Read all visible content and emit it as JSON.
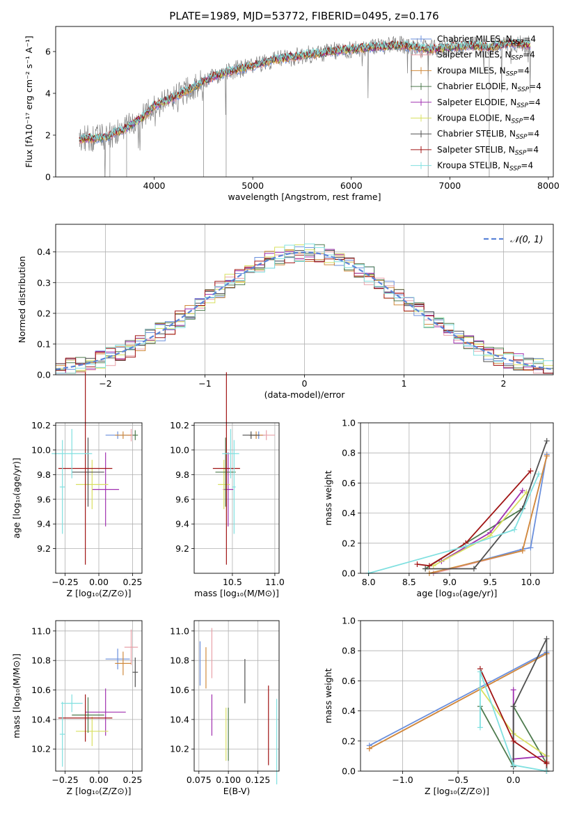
{
  "figure_title": "PLATE=1989, MJD=53772, FIBERID=0495, z=0.176",
  "model_colors": [
    "#6a8fdc",
    "#e8a0a8",
    "#d08a3c",
    "#4d7a4d",
    "#a030b0",
    "#d8e060",
    "#505050",
    "#a01414",
    "#80e0e0"
  ],
  "chart_data": [
    {
      "id": "spectrum",
      "type": "line",
      "title": "PLATE=1989, MJD=53772, FIBERID=0495, z=0.176",
      "xlabel": "wavelength [Angstrom, rest frame]",
      "ylabel": "Flux [fλ10⁻¹⁷ erg cm⁻² s⁻¹ A⁻¹]",
      "xlim": [
        3000,
        8050
      ],
      "ylim": [
        0,
        7.2
      ],
      "xticks": [
        4000,
        5000,
        6000,
        7000,
        8000
      ],
      "yticks": [
        0,
        2,
        4,
        6
      ],
      "grid": false,
      "legend_position": "top-right",
      "legend": [
        "Chabrier MILES, N_SSP=4",
        "Salpeter MILES, N_SSP=4",
        "Kroupa MILES, N_SSP=4",
        "Chabrier ELODIE, N_SSP=4",
        "Salpeter ELODIE, N_SSP=4",
        "Kroupa ELODIE, N_SSP=4",
        "Chabrier STELIB, N_SSP=4",
        "Salpeter STELIB, N_SSP=4",
        "Kroupa STELIB, N_SSP=4"
      ],
      "data_range_x": [
        3240,
        7820
      ],
      "model_envelope": [
        [
          3240,
          1.8
        ],
        [
          3500,
          1.9
        ],
        [
          3700,
          2.3
        ],
        [
          3900,
          2.9
        ],
        [
          4000,
          3.4
        ],
        [
          4200,
          3.8
        ],
        [
          4400,
          4.3
        ],
        [
          4600,
          4.8
        ],
        [
          4800,
          5.1
        ],
        [
          5000,
          5.3
        ],
        [
          5200,
          5.6
        ],
        [
          5500,
          5.8
        ],
        [
          5800,
          6.0
        ],
        [
          6000,
          6.1
        ],
        [
          6200,
          6.2
        ],
        [
          6500,
          6.3
        ],
        [
          6800,
          6.1
        ],
        [
          7000,
          6.2
        ],
        [
          7200,
          6.3
        ],
        [
          7400,
          6.2
        ],
        [
          7600,
          6.4
        ],
        [
          7820,
          6.3
        ]
      ]
    },
    {
      "id": "residuals",
      "type": "histogram",
      "xlabel": "(data-model)/error",
      "ylabel": "Normed distribution",
      "xlim": [
        -2.5,
        2.5
      ],
      "ylim": [
        0,
        0.49
      ],
      "xticks": [
        -2,
        -1,
        0,
        1,
        2
      ],
      "yticks": [
        0.0,
        0.1,
        0.2,
        0.3,
        0.4
      ],
      "grid": true,
      "legend_position": "top-right",
      "legend": [
        "𝒩(0, 1)"
      ],
      "bin_width": 0.1
    },
    {
      "id": "age-vs-Z",
      "type": "scatter",
      "xlabel": "Z [log₁₀(Z/Z⊙)]",
      "ylabel": "age  [log₁₀(age/yr)]",
      "xlim": [
        -0.32,
        0.32
      ],
      "ylim": [
        9.0,
        10.22
      ],
      "xticks": [
        -0.25,
        0.0,
        0.25
      ],
      "yticks": [
        9.2,
        9.4,
        9.6,
        9.8,
        10.0,
        10.2
      ],
      "grid": true,
      "points": [
        {
          "x": 0.14,
          "y": 10.12,
          "xerr": 0.09,
          "yerr": 0.03,
          "color": 0
        },
        {
          "x": 0.24,
          "y": 10.12,
          "xerr": 0.03,
          "yerr": 0.05,
          "color": 1
        },
        {
          "x": 0.18,
          "y": 10.12,
          "xerr": 0.06,
          "yerr": 0.03,
          "color": 2
        },
        {
          "x": 0.27,
          "y": 10.12,
          "xerr": 0.02,
          "yerr": 0.04,
          "color": 3
        },
        {
          "x": 0.05,
          "y": 9.68,
          "xerr": 0.1,
          "yerr": 0.3,
          "color": 4
        },
        {
          "x": -0.05,
          "y": 9.72,
          "xerr": 0.12,
          "yerr": 0.2,
          "color": 5
        },
        {
          "x": -0.08,
          "y": 9.82,
          "xerr": 0.12,
          "yerr": 0.28,
          "color": 6
        },
        {
          "x": -0.1,
          "y": 9.85,
          "xerr": 0.2,
          "yerr": 0.78,
          "color": 7
        },
        {
          "x": -0.2,
          "y": 9.97,
          "xerr": 0.15,
          "yerr": 0.2,
          "color": 8
        },
        {
          "x": -0.27,
          "y": 9.7,
          "xerr": 0.02,
          "yerr": 0.38,
          "color": 8
        }
      ]
    },
    {
      "id": "age-vs-mass",
      "type": "scatter",
      "xlabel": "mass [log₁₀(M/M⊙)]",
      "ylabel": "",
      "xlim": [
        10.05,
        11.05
      ],
      "ylim": [
        9.0,
        10.22
      ],
      "xticks": [
        10.5,
        11.0
      ],
      "yticks": [
        9.2,
        9.4,
        9.6,
        9.8,
        10.0,
        10.2
      ],
      "grid": true,
      "points": [
        {
          "x": 10.81,
          "y": 10.12,
          "xerr": 0.07,
          "yerr": 0.03,
          "color": 0
        },
        {
          "x": 10.9,
          "y": 10.12,
          "xerr": 0.1,
          "yerr": 0.04,
          "color": 1
        },
        {
          "x": 10.78,
          "y": 10.12,
          "xerr": 0.08,
          "yerr": 0.03,
          "color": 2
        },
        {
          "x": 10.72,
          "y": 10.12,
          "xerr": 0.1,
          "yerr": 0.03,
          "color": 6
        },
        {
          "x": 10.45,
          "y": 9.68,
          "xerr": 0.06,
          "yerr": 0.3,
          "color": 4
        },
        {
          "x": 10.4,
          "y": 9.72,
          "xerr": 0.07,
          "yerr": 0.2,
          "color": 5
        },
        {
          "x": 10.42,
          "y": 9.82,
          "xerr": 0.12,
          "yerr": 0.28,
          "color": 3
        },
        {
          "x": 10.43,
          "y": 9.85,
          "xerr": 0.16,
          "yerr": 0.78,
          "color": 7
        },
        {
          "x": 10.48,
          "y": 9.97,
          "xerr": 0.1,
          "yerr": 0.2,
          "color": 8
        },
        {
          "x": 10.52,
          "y": 9.7,
          "xerr": 0.02,
          "yerr": 0.38,
          "color": 8
        }
      ]
    },
    {
      "id": "mass-weight-vs-age",
      "type": "line",
      "xlabel": "age  [log₁₀(age/yr)]",
      "ylabel": "mass weight",
      "xlim": [
        7.9,
        10.28
      ],
      "ylim": [
        0,
        1.0
      ],
      "xticks": [
        8.0,
        8.5,
        9.0,
        9.5,
        10.0
      ],
      "yticks": [
        0.0,
        0.2,
        0.4,
        0.6,
        0.8,
        1.0
      ],
      "grid": true,
      "series": [
        {
          "color": 0,
          "points": [
            [
              8.8,
              0.0
            ],
            [
              9.9,
              0.16
            ],
            [
              10.0,
              0.17
            ],
            [
              10.2,
              0.79
            ]
          ]
        },
        {
          "color": 1,
          "points": [
            [
              8.8,
              0.0
            ],
            [
              9.9,
              0.15
            ],
            [
              10.2,
              0.78
            ]
          ]
        },
        {
          "color": 2,
          "points": [
            [
              8.75,
              0.0
            ],
            [
              9.9,
              0.15
            ],
            [
              10.2,
              0.78
            ]
          ]
        },
        {
          "color": 3,
          "points": [
            [
              8.7,
              0.03
            ],
            [
              9.2,
              0.2
            ],
            [
              9.9,
              0.43
            ]
          ]
        },
        {
          "color": 4,
          "points": [
            [
              8.9,
              0.08
            ],
            [
              9.5,
              0.27
            ],
            [
              9.9,
              0.55
            ]
          ]
        },
        {
          "color": 5,
          "points": [
            [
              8.8,
              0.05
            ],
            [
              9.5,
              0.25
            ],
            [
              9.95,
              0.54
            ]
          ]
        },
        {
          "color": 6,
          "points": [
            [
              8.7,
              0.03
            ],
            [
              9.3,
              0.03
            ],
            [
              9.9,
              0.43
            ],
            [
              10.2,
              0.88
            ]
          ]
        },
        {
          "color": 7,
          "points": [
            [
              8.6,
              0.06
            ],
            [
              8.75,
              0.05
            ],
            [
              9.2,
              0.2
            ],
            [
              10.0,
              0.68
            ]
          ]
        },
        {
          "color": 8,
          "points": [
            [
              8.0,
              0.0
            ],
            [
              9.2,
              0.18
            ],
            [
              9.8,
              0.29
            ],
            [
              10.1,
              0.66
            ]
          ]
        }
      ]
    },
    {
      "id": "mass-vs-Z",
      "type": "scatter",
      "xlabel": "Z [log₁₀(Z/Z⊙)]",
      "ylabel": "mass [log₁₀(M/M⊙)]",
      "xlim": [
        -0.32,
        0.32
      ],
      "ylim": [
        10.05,
        11.07
      ],
      "xticks": [
        -0.25,
        0.0,
        0.25
      ],
      "yticks": [
        10.2,
        10.4,
        10.6,
        10.8,
        11.0
      ],
      "grid": true,
      "points": [
        {
          "x": 0.14,
          "y": 10.81,
          "xerr": 0.09,
          "yerr": 0.07,
          "color": 0
        },
        {
          "x": 0.24,
          "y": 10.89,
          "xerr": 0.05,
          "yerr": 0.12,
          "color": 1
        },
        {
          "x": 0.18,
          "y": 10.78,
          "xerr": 0.06,
          "yerr": 0.08,
          "color": 2
        },
        {
          "x": 0.27,
          "y": 10.72,
          "xerr": 0.02,
          "yerr": 0.1,
          "color": 6
        },
        {
          "x": 0.05,
          "y": 10.45,
          "xerr": 0.15,
          "yerr": 0.16,
          "color": 4
        },
        {
          "x": -0.05,
          "y": 10.32,
          "xerr": 0.12,
          "yerr": 0.1,
          "color": 5
        },
        {
          "x": -0.08,
          "y": 10.43,
          "xerr": 0.12,
          "yerr": 0.12,
          "color": 3
        },
        {
          "x": -0.1,
          "y": 10.41,
          "xerr": 0.2,
          "yerr": 0.16,
          "color": 7
        },
        {
          "x": -0.2,
          "y": 10.51,
          "xerr": 0.08,
          "yerr": 0.06,
          "color": 8
        },
        {
          "x": -0.27,
          "y": 10.3,
          "xerr": 0.02,
          "yerr": 0.22,
          "color": 8
        }
      ]
    },
    {
      "id": "mass-vs-ebv",
      "type": "scatter",
      "xlabel": "E(B-V)",
      "ylabel": "",
      "xlim": [
        0.071,
        0.143
      ],
      "ylim": [
        10.05,
        11.07
      ],
      "xticks": [
        0.075,
        0.1,
        0.125
      ],
      "yticks": [
        10.2,
        10.4,
        10.6,
        10.8,
        11.0
      ],
      "grid": true,
      "points": [
        {
          "x": 0.076,
          "y": 10.78,
          "xerr": 0,
          "yerr": 0.15,
          "color": 0
        },
        {
          "x": 0.086,
          "y": 10.85,
          "xerr": 0,
          "yerr": 0.17,
          "color": 1
        },
        {
          "x": 0.081,
          "y": 10.75,
          "xerr": 0,
          "yerr": 0.14,
          "color": 2
        },
        {
          "x": 0.1,
          "y": 10.3,
          "xerr": 0,
          "yerr": 0.18,
          "color": 3
        },
        {
          "x": 0.086,
          "y": 10.43,
          "xerr": 0,
          "yerr": 0.14,
          "color": 4
        },
        {
          "x": 0.098,
          "y": 10.3,
          "xerr": 0,
          "yerr": 0.18,
          "color": 5
        },
        {
          "x": 0.114,
          "y": 10.66,
          "xerr": 0,
          "yerr": 0.15,
          "color": 6
        },
        {
          "x": 0.134,
          "y": 10.36,
          "xerr": 0,
          "yerr": 0.27,
          "color": 7
        },
        {
          "x": 0.141,
          "y": 10.25,
          "xerr": 0,
          "yerr": 0.29,
          "color": 8
        }
      ]
    },
    {
      "id": "mass-weight-vs-Z",
      "type": "line",
      "xlabel": "Z [log₁₀(Z/Z⊙)]",
      "ylabel": "mass weight",
      "xlim": [
        -1.38,
        0.36
      ],
      "ylim": [
        0,
        1.0
      ],
      "xticks": [
        -1.0,
        -0.5,
        0.0
      ],
      "yticks": [
        0.0,
        0.2,
        0.4,
        0.6,
        0.8,
        1.0
      ],
      "grid": true,
      "series": [
        {
          "color": 0,
          "points": [
            [
              -1.3,
              0.17
            ],
            [
              0.3,
              0.79
            ],
            [
              0.3,
              0.0
            ]
          ]
        },
        {
          "color": 1,
          "points": [
            [
              -1.3,
              0.15
            ],
            [
              0.3,
              0.78
            ],
            [
              0.3,
              0.0
            ]
          ]
        },
        {
          "color": 2,
          "points": [
            [
              -1.3,
              0.15
            ],
            [
              0.3,
              0.78
            ],
            [
              0.3,
              0.0
            ]
          ]
        },
        {
          "color": 3,
          "points": [
            [
              -0.3,
              0.43
            ],
            [
              0.0,
              0.03
            ],
            [
              0.0,
              0.43
            ],
            [
              0.3,
              0.05
            ]
          ]
        },
        {
          "color": 4,
          "points": [
            [
              0.0,
              0.54
            ],
            [
              0.0,
              0.08
            ],
            [
              0.3,
              0.1
            ]
          ]
        },
        {
          "color": 5,
          "points": [
            [
              -0.3,
              0.55
            ],
            [
              0.0,
              0.25
            ],
            [
              0.3,
              0.1
            ]
          ]
        },
        {
          "color": 6,
          "points": [
            [
              0.0,
              0.03
            ],
            [
              0.0,
              0.43
            ],
            [
              0.3,
              0.88
            ],
            [
              0.3,
              0.0
            ]
          ]
        },
        {
          "color": 7,
          "points": [
            [
              -0.3,
              0.68
            ],
            [
              0.0,
              0.2
            ],
            [
              0.3,
              0.05
            ],
            [
              0.3,
              0.06
            ]
          ]
        },
        {
          "color": 8,
          "points": [
            [
              -0.3,
              0.29
            ],
            [
              -0.3,
              0.66
            ],
            [
              0.0,
              0.04
            ],
            [
              0.3,
              0.0
            ]
          ]
        }
      ]
    }
  ]
}
